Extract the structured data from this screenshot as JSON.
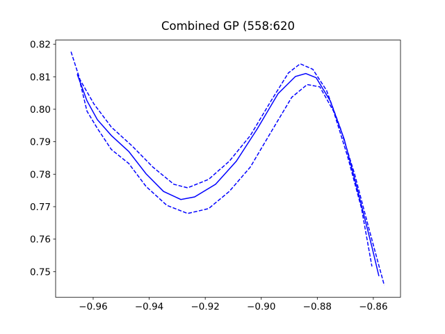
{
  "chart_data": {
    "type": "line",
    "title": "Combined GP (558:620",
    "xlim": [
      -0.9734,
      -0.8503
    ],
    "ylim": [
      0.7421,
      0.8213
    ],
    "xticks": [
      {
        "value": -0.96,
        "label": "−0.96"
      },
      {
        "value": -0.94,
        "label": "−0.94"
      },
      {
        "value": -0.92,
        "label": "−0.92"
      },
      {
        "value": -0.9,
        "label": "−0.90"
      },
      {
        "value": -0.88,
        "label": "−0.88"
      },
      {
        "value": -0.86,
        "label": "−0.86"
      }
    ],
    "yticks": [
      0.75,
      0.76,
      0.77,
      0.78,
      0.79,
      {
        "value": 0.8,
        "label": "0.80"
      },
      0.81,
      0.82
    ],
    "grid": false,
    "series": [
      {
        "color": "#0000ff",
        "linestyle": "solid",
        "x": [
          -0.9657,
          -0.9622,
          -0.9585,
          -0.9535,
          -0.9473,
          -0.9411,
          -0.9349,
          -0.9287,
          -0.9238,
          -0.9163,
          -0.9089,
          -0.9014,
          -0.894,
          -0.8878,
          -0.8841,
          -0.8804,
          -0.8754,
          -0.8704,
          -0.8655,
          -0.8605,
          -0.858
        ],
        "values": [
          0.8108,
          0.8026,
          0.7968,
          0.7919,
          0.787,
          0.7801,
          0.7747,
          0.7722,
          0.773,
          0.7769,
          0.784,
          0.794,
          0.8048,
          0.8101,
          0.811,
          0.8097,
          0.8026,
          0.7908,
          0.7747,
          0.7576,
          0.7486
        ]
      },
      {
        "color": "#0000ff",
        "linestyle": "dashed",
        "x": [
          -0.9679,
          -0.9647,
          -0.9597,
          -0.9535,
          -0.9461,
          -0.9387,
          -0.9312,
          -0.9263,
          -0.9188,
          -0.9114,
          -0.9039,
          -0.8965,
          -0.8903,
          -0.8861,
          -0.8816,
          -0.8767,
          -0.8717,
          -0.8667,
          -0.8618,
          -0.858,
          -0.8561
        ],
        "values": [
          0.8177,
          0.8091,
          0.8016,
          0.7945,
          0.7887,
          0.7822,
          0.7769,
          0.7758,
          0.7784,
          0.784,
          0.7919,
          0.8026,
          0.8112,
          0.814,
          0.8123,
          0.8058,
          0.794,
          0.7801,
          0.764,
          0.7518,
          0.7458
        ]
      },
      {
        "color": "#0000ff",
        "linestyle": "dashed",
        "x": [
          -0.9655,
          -0.9622,
          -0.9585,
          -0.9535,
          -0.9473,
          -0.9411,
          -0.9337,
          -0.9263,
          -0.9188,
          -0.9114,
          -0.9039,
          -0.8965,
          -0.8891,
          -0.8836,
          -0.8791,
          -0.8742,
          -0.8692,
          -0.8642,
          -0.8605
        ],
        "values": [
          0.8112,
          0.7994,
          0.7941,
          0.7876,
          0.7833,
          0.7762,
          0.7704,
          0.7679,
          0.7694,
          0.7747,
          0.7822,
          0.793,
          0.8037,
          0.8076,
          0.8069,
          0.7994,
          0.7855,
          0.7694,
          0.7516
        ]
      }
    ]
  }
}
